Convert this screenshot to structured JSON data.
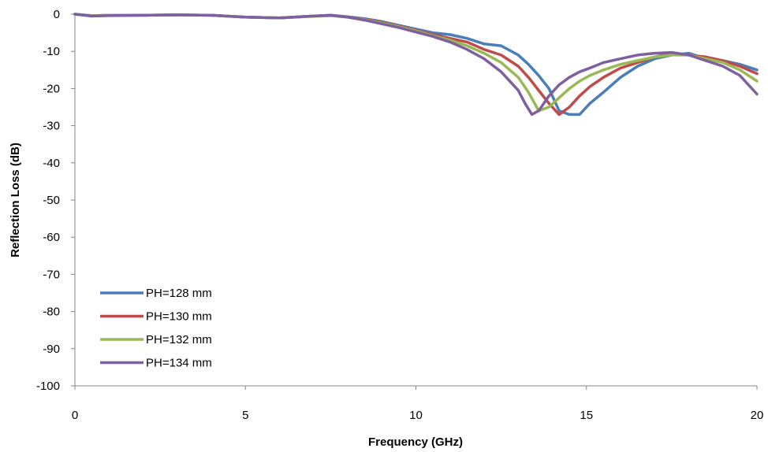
{
  "chart_data": {
    "type": "line",
    "title": "",
    "xlabel": "Frequency (GHz)",
    "ylabel": "Reflection Loss (dB)",
    "xlim": [
      0,
      20
    ],
    "ylim": [
      -100,
      0
    ],
    "xticks": [
      0,
      5,
      10,
      15,
      20
    ],
    "yticks": [
      0,
      -10,
      -20,
      -30,
      -40,
      -50,
      -60,
      -70,
      -80,
      -90,
      -100
    ],
    "grid": false,
    "legend_position": "bottom-left",
    "series": [
      {
        "name": "PH=128 mm",
        "color": "#4a7ebb",
        "x": [
          0,
          0.5,
          1,
          2,
          3,
          4,
          5,
          6,
          7,
          7.5,
          8,
          8.5,
          9,
          9.5,
          10,
          10.5,
          11,
          11.5,
          12,
          12.5,
          13,
          13.3,
          13.6,
          13.9,
          14.2,
          14.5,
          14.8,
          15.1,
          15.5,
          16,
          16.5,
          17,
          17.5,
          18,
          18.5,
          19,
          19.5,
          20
        ],
        "y": [
          0,
          -0.5,
          -0.3,
          -0.3,
          -0.2,
          -0.3,
          -0.8,
          -1.0,
          -0.5,
          -0.3,
          -0.7,
          -1.2,
          -2.0,
          -3.0,
          -4.0,
          -5.0,
          -5.5,
          -6.5,
          -8.0,
          -8.5,
          -11.0,
          -13.5,
          -16.5,
          -20.0,
          -26.0,
          -27.0,
          -27.0,
          -24.0,
          -21.0,
          -17.0,
          -14.0,
          -12.0,
          -11.0,
          -10.5,
          -12.0,
          -12.5,
          -13.5,
          -15.0
        ]
      },
      {
        "name": "PH=130 mm",
        "color": "#be4b48",
        "x": [
          0,
          0.5,
          1,
          2,
          3,
          4,
          5,
          6,
          7,
          7.5,
          8,
          8.5,
          9,
          9.5,
          10,
          10.5,
          11,
          11.5,
          12,
          12.5,
          13,
          13.3,
          13.6,
          13.9,
          14.2,
          14.5,
          14.8,
          15.1,
          15.5,
          16,
          16.5,
          17,
          17.5,
          18,
          18.5,
          19,
          19.5,
          20
        ],
        "y": [
          0,
          -0.4,
          -0.3,
          -0.3,
          -0.2,
          -0.3,
          -0.8,
          -1.0,
          -0.5,
          -0.3,
          -0.8,
          -1.4,
          -2.2,
          -3.2,
          -4.3,
          -5.5,
          -6.5,
          -7.5,
          -9.5,
          -11.0,
          -14.0,
          -17.0,
          -20.5,
          -24.0,
          -27.0,
          -25.0,
          -22.0,
          -19.5,
          -17.0,
          -14.5,
          -13.0,
          -11.5,
          -10.5,
          -11.0,
          -11.5,
          -12.5,
          -14.0,
          -16.0
        ]
      },
      {
        "name": "PH=132 mm",
        "color": "#98b954",
        "x": [
          0,
          0.5,
          1,
          2,
          3,
          4,
          5,
          6,
          7,
          7.5,
          8,
          8.5,
          9,
          9.5,
          10,
          10.5,
          11,
          11.5,
          12,
          12.5,
          13,
          13.3,
          13.6,
          13.9,
          14.2,
          14.5,
          14.8,
          15.1,
          15.5,
          16,
          16.5,
          17,
          17.5,
          18,
          18.5,
          19,
          19.5,
          20
        ],
        "y": [
          0,
          -0.4,
          -0.3,
          -0.3,
          -0.2,
          -0.3,
          -0.8,
          -1.0,
          -0.6,
          -0.4,
          -0.8,
          -1.5,
          -2.4,
          -3.4,
          -4.5,
          -5.8,
          -7.0,
          -8.5,
          -10.5,
          -13.0,
          -17.0,
          -21.0,
          -26.0,
          -25.0,
          -22.5,
          -20.0,
          -18.0,
          -16.5,
          -15.0,
          -13.5,
          -12.5,
          -11.5,
          -11.0,
          -11.0,
          -12.0,
          -13.0,
          -15.0,
          -18.0
        ]
      },
      {
        "name": "PH=134 mm",
        "color": "#7d60a0",
        "x": [
          0,
          0.5,
          1,
          2,
          3,
          4,
          5,
          6,
          7,
          7.5,
          8,
          8.5,
          9,
          9.5,
          10,
          10.5,
          11,
          11.5,
          12,
          12.5,
          13,
          13.2,
          13.4,
          13.6,
          13.9,
          14.2,
          14.5,
          14.8,
          15.1,
          15.5,
          16,
          16.5,
          17,
          17.5,
          18,
          18.5,
          19,
          19.5,
          20
        ],
        "y": [
          0,
          -0.5,
          -0.4,
          -0.3,
          -0.2,
          -0.3,
          -0.8,
          -1.0,
          -0.5,
          -0.3,
          -0.8,
          -1.6,
          -2.6,
          -3.6,
          -4.8,
          -6.0,
          -7.5,
          -9.5,
          -12.0,
          -15.5,
          -20.5,
          -24.0,
          -27.0,
          -26.0,
          -22.0,
          -19.0,
          -17.0,
          -15.5,
          -14.5,
          -13.0,
          -12.0,
          -11.0,
          -10.5,
          -10.3,
          -11.0,
          -12.5,
          -14.0,
          -16.5,
          -21.5
        ]
      }
    ]
  }
}
